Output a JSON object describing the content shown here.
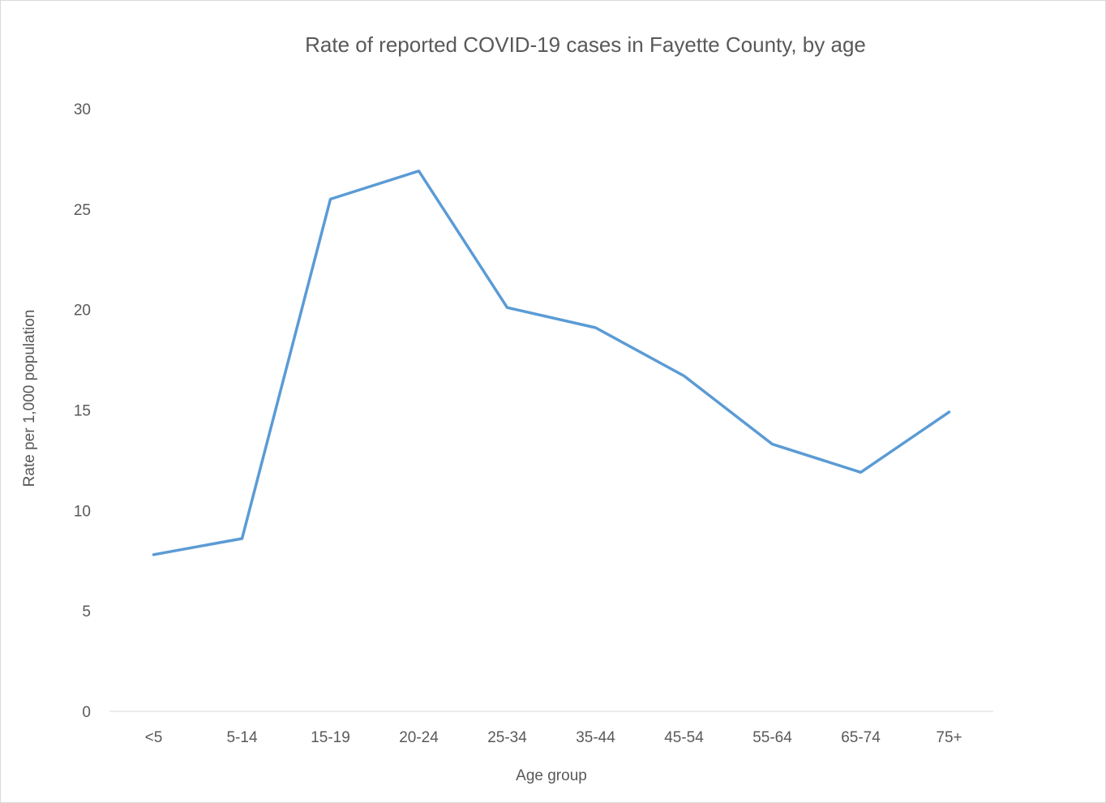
{
  "chart_data": {
    "type": "line",
    "title": "Rate of reported COVID-19 cases in Fayette County, by age",
    "xlabel": "Age group",
    "ylabel": "Rate per 1,000 population",
    "categories": [
      "<5",
      "5-14",
      "15-19",
      "20-24",
      "25-34",
      "35-44",
      "45-54",
      "55-64",
      "65-74",
      "75+"
    ],
    "series": [
      {
        "values": [
          7.8,
          8.6,
          25.5,
          26.9,
          20.1,
          19.1,
          16.7,
          13.3,
          11.9,
          14.9
        ]
      }
    ],
    "ylim": [
      0,
      30
    ],
    "yticks": [
      "0",
      "5",
      "10",
      "15",
      "20",
      "25",
      "30"
    ],
    "grid": false,
    "legend": "none",
    "colors": {
      "line": "#5b9bd5",
      "text": "#595959",
      "axis": "#d9d9d9"
    }
  }
}
